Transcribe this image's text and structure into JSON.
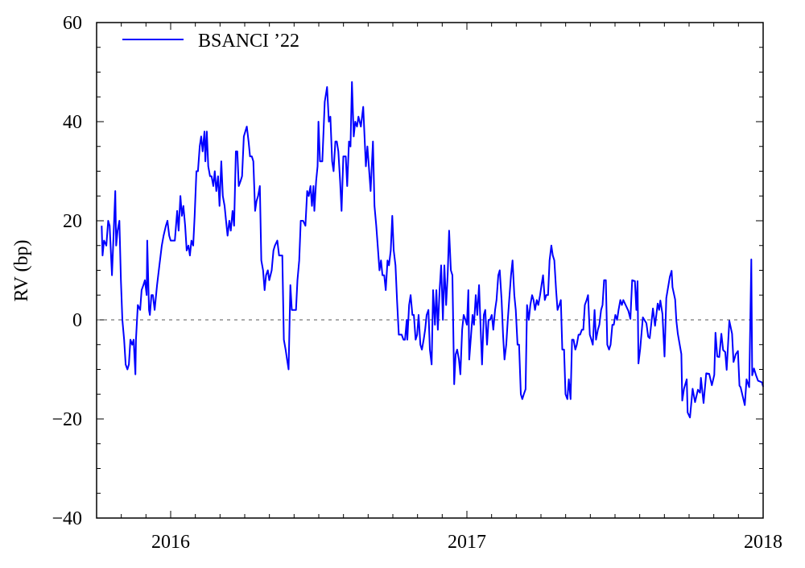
{
  "chart_data": {
    "type": "line",
    "title": "",
    "xlabel": "",
    "ylabel": "RV (bp)",
    "xlim": [
      2015.75,
      2018
    ],
    "ylim": [
      -40,
      60
    ],
    "x_ticks": [
      2016,
      2017,
      2018
    ],
    "x_tick_labels": [
      "2016",
      "2017",
      "2018"
    ],
    "x_minor_step_years": 0.0833333,
    "y_ticks": [
      -40,
      -20,
      0,
      20,
      40,
      60
    ],
    "y_tick_labels": [
      "−40",
      "−20",
      "0",
      "20",
      "40",
      "60"
    ],
    "y_minor_step": 5,
    "grid": false,
    "reference_line": {
      "y": 0,
      "style": "dashed",
      "color": "#555555"
    },
    "legend": {
      "placement": "top-left",
      "entries": [
        "BSANCI ’22"
      ]
    },
    "series": [
      {
        "name": "BSANCI ’22",
        "color": "#0000ff",
        "x": [
          2015.767,
          2015.77,
          2015.775,
          2015.783,
          2015.789,
          2015.794,
          2015.802,
          2015.808,
          2015.813,
          2015.816,
          2015.821,
          2015.827,
          2015.832,
          2015.837,
          2015.843,
          2015.848,
          2015.854,
          2015.859,
          2015.864,
          2015.87,
          2015.875,
          2015.881,
          2015.883,
          2015.889,
          2015.897,
          2015.902,
          2015.908,
          2015.913,
          2015.919,
          2015.921,
          2015.927,
          2015.93,
          2015.935,
          2015.94,
          2015.946,
          2015.954,
          2015.962,
          2015.97,
          2015.976,
          2015.984,
          2015.989,
          2015.995,
          2016.0,
          2016.014,
          2016.022,
          2016.027,
          2016.033,
          2016.038,
          2016.043,
          2016.049,
          2016.054,
          2016.06,
          2016.065,
          2016.07,
          2016.076,
          2016.081,
          2016.087,
          2016.092,
          2016.098,
          2016.103,
          2016.108,
          2016.114,
          2016.117,
          2016.122,
          2016.127,
          2016.133,
          2016.138,
          2016.144,
          2016.149,
          2016.154,
          2016.16,
          2016.165,
          2016.171,
          2016.176,
          2016.182,
          2016.187,
          2016.192,
          2016.198,
          2016.203,
          2016.209,
          2016.214,
          2016.22,
          2016.225,
          2016.23,
          2016.236,
          2016.241,
          2016.247,
          2016.252,
          2016.257,
          2016.263,
          2016.268,
          2016.274,
          2016.279,
          2016.285,
          2016.29,
          2016.295,
          2016.301,
          2016.306,
          2016.312,
          2016.317,
          2016.322,
          2016.328,
          2016.333,
          2016.341,
          2016.347,
          2016.352,
          2016.36,
          2016.366,
          2016.377,
          2016.382,
          2016.388,
          2016.393,
          2016.398,
          2016.404,
          2016.409,
          2016.415,
          2016.423,
          2016.428,
          2016.434,
          2016.439,
          2016.447,
          2016.455,
          2016.461,
          2016.466,
          2016.472,
          2016.477,
          2016.482,
          2016.485,
          2016.491,
          2016.496,
          2016.499,
          2016.504,
          2016.512,
          2016.52,
          2016.528,
          2016.534,
          2016.539,
          2016.545,
          2016.55,
          2016.556,
          2016.561,
          2016.566,
          2016.572,
          2016.577,
          2016.583,
          2016.591,
          2016.596,
          2016.602,
          2016.607,
          2016.612,
          2016.618,
          2016.623,
          2016.629,
          2016.634,
          2016.642,
          2016.65,
          2016.659,
          2016.664,
          2016.669,
          2016.675,
          2016.683,
          2016.688,
          2016.694,
          2016.699,
          2016.705,
          2016.71,
          2016.715,
          2016.721,
          2016.726,
          2016.732,
          2016.737,
          2016.743,
          2016.748,
          2016.753,
          2016.759,
          2016.764,
          2016.77,
          2016.775,
          2016.78,
          2016.786,
          2016.791,
          2016.797,
          2016.799,
          2016.805,
          2016.81,
          2016.816,
          2016.821,
          2016.827,
          2016.832,
          2016.837,
          2016.843,
          2016.848,
          2016.854,
          2016.859,
          2016.864,
          2016.87,
          2016.875,
          2016.881,
          2016.886,
          2016.892,
          2016.897,
          2016.902,
          2016.908,
          2016.913,
          2016.919,
          2016.924,
          2016.93,
          2016.935,
          2016.94,
          2016.946,
          2016.951,
          2016.957,
          2016.962,
          2016.967,
          2016.973,
          2016.978,
          2016.984,
          2016.989,
          2016.995,
          2017.0,
          2017.005,
          2017.008,
          2017.014,
          2017.019,
          2017.024,
          2017.03,
          2017.035,
          2017.041,
          2017.046,
          2017.051,
          2017.057,
          2017.062,
          2017.068,
          2017.073,
          2017.078,
          2017.084,
          2017.089,
          2017.095,
          2017.1,
          2017.106,
          2017.111,
          2017.117,
          2017.122,
          2017.127,
          2017.133,
          2017.138,
          2017.144,
          2017.149,
          2017.154,
          2017.16,
          2017.165,
          2017.171,
          2017.176,
          2017.182,
          2017.187,
          2017.192,
          2017.198,
          2017.203,
          2017.209,
          2017.214,
          2017.22,
          2017.225,
          2017.23,
          2017.236,
          2017.241,
          2017.247,
          2017.252,
          2017.257,
          2017.263,
          2017.268,
          2017.274,
          2017.279,
          2017.285,
          2017.29,
          2017.295,
          2017.301,
          2017.306,
          2017.312,
          2017.317,
          2017.322,
          2017.328,
          2017.333,
          2017.339,
          2017.344,
          2017.35,
          2017.355,
          2017.36,
          2017.366,
          2017.371,
          2017.377,
          2017.382,
          2017.388,
          2017.393,
          2017.398,
          2017.404,
          2017.409,
          2017.415,
          2017.42,
          2017.425,
          2017.431,
          2017.436,
          2017.442,
          2017.447,
          2017.453,
          2017.458,
          2017.463,
          2017.469,
          2017.474,
          2017.48,
          2017.485,
          2017.491,
          2017.496,
          2017.501,
          2017.507,
          2017.512,
          2017.518,
          2017.523,
          2017.528,
          2017.545,
          2017.552,
          2017.558,
          2017.567,
          2017.572,
          2017.576,
          2017.579,
          2017.585,
          2017.594,
          2017.606,
          2017.612,
          2017.617,
          2017.628,
          2017.635,
          2017.644,
          2017.649,
          2017.653,
          2017.66,
          2017.667,
          2017.673,
          2017.685,
          2017.691,
          2017.694,
          2017.703,
          2017.707,
          2017.712,
          2017.724,
          2017.727,
          2017.733,
          2017.742,
          2017.745,
          2017.753,
          2017.762,
          2017.77,
          2017.78,
          2017.787,
          2017.79,
          2017.799,
          2017.808,
          2017.818,
          2017.827,
          2017.835,
          2017.839,
          2017.845,
          2017.852,
          2017.859,
          2017.865,
          2017.872,
          2017.877,
          2017.886,
          2017.895,
          2017.9,
          2017.908,
          2017.915,
          2017.92,
          2017.924,
          2017.938,
          2017.944,
          2017.953,
          2017.96,
          2017.963,
          2017.969,
          2017.976,
          2017.983,
          2017.996,
          2018.0
        ],
        "y": [
          19,
          13,
          16,
          15,
          20,
          19,
          9,
          18,
          26,
          15,
          18,
          20,
          8,
          0,
          -4,
          -9,
          -10,
          -9,
          -4,
          -5,
          -4,
          -11,
          -4,
          3,
          2,
          6,
          7,
          8,
          5,
          16,
          2,
          1,
          5,
          5,
          2,
          7,
          11,
          15,
          17,
          19,
          20,
          17,
          16,
          16,
          22,
          18,
          25,
          21,
          23,
          19,
          14,
          15,
          13,
          16,
          15,
          21,
          30,
          30,
          35,
          37,
          34,
          38,
          32,
          38,
          31,
          29,
          29,
          27,
          30,
          26,
          29,
          23,
          32,
          25,
          23,
          20,
          17,
          20,
          18,
          22,
          19,
          34,
          34,
          27,
          28,
          29,
          37,
          38,
          39,
          36,
          33,
          33,
          32,
          22,
          24,
          25,
          27,
          12,
          10,
          6,
          9,
          10,
          8,
          10,
          14,
          15,
          16,
          13,
          13,
          -4,
          -6,
          -8,
          -10,
          7,
          2,
          2,
          2,
          8,
          12,
          20,
          20,
          19,
          26,
          25,
          27,
          23,
          27,
          22,
          28,
          31,
          40,
          32,
          32,
          44,
          47,
          40,
          41,
          32,
          30,
          36,
          36,
          34,
          28,
          22,
          33,
          33,
          27,
          36,
          35,
          48,
          37,
          40,
          39,
          41,
          39,
          43,
          31,
          35,
          31,
          26,
          36,
          23,
          19,
          15,
          10,
          12,
          9,
          9,
          6,
          12,
          11,
          14,
          21,
          14,
          11,
          4,
          -3,
          -3,
          -3,
          -4,
          -4,
          0,
          -4,
          3,
          5,
          1,
          1,
          -4,
          -3,
          1,
          -5,
          -6,
          -4,
          -2,
          1,
          2,
          -6,
          -9,
          6,
          -1,
          6,
          -2,
          6,
          11,
          0,
          11,
          3,
          9,
          18,
          10,
          9,
          -13,
          -7,
          -6,
          -8,
          -11,
          -2,
          1,
          0,
          -1,
          6,
          -8,
          -3,
          1,
          -1,
          5,
          1,
          7,
          -1,
          -9,
          1,
          2,
          -5,
          0,
          0,
          1,
          -2,
          2,
          4,
          9,
          10,
          4,
          -3,
          -8,
          -5,
          0,
          5,
          9,
          12,
          5,
          2,
          -5,
          -5,
          -15,
          -16,
          -15,
          -14,
          3,
          0,
          3,
          5,
          4,
          2,
          4,
          3,
          5,
          7,
          9,
          4,
          5,
          5,
          12,
          15,
          13,
          12,
          6,
          2,
          3,
          4,
          -6,
          -6,
          -15,
          -16,
          -12,
          -16,
          -4,
          -4,
          -6,
          -5,
          -3,
          -3,
          -2,
          -2,
          3,
          4,
          5,
          -3,
          -4,
          -5,
          2,
          -4,
          -2,
          -1,
          2,
          3,
          8,
          8,
          -5,
          -6,
          -5,
          -1,
          -1,
          1,
          0,
          2,
          4,
          3,
          4,
          1.8,
          0.2,
          8,
          7.8,
          2,
          7.8,
          -8.8,
          -5.8,
          0.5,
          -0.7,
          -3.4,
          -3.7,
          2.3,
          -1.2,
          3.3,
          2,
          3.9,
          1.2,
          -7.4,
          4.4,
          8.7,
          9.9,
          6.6,
          4.1,
          -0.2,
          -2.8,
          -6.9,
          -16.3,
          -13.9,
          -12,
          -18.7,
          -19.7,
          -13.9,
          -16.6,
          -14.1,
          -14.7,
          -11.7,
          -16.8,
          -10.8,
          -10.9,
          -13.2,
          -11.1,
          -2.6,
          -7.4,
          -7.5,
          -2.8,
          -6.1,
          -6.5,
          -10.1,
          -0.2,
          -2.8,
          -8.5,
          -6.9,
          -6.3,
          -13.3,
          -13.6,
          -17.2,
          -12,
          -13.6,
          12.2,
          -11.2,
          -9.8,
          -11.2,
          -12.3,
          -12.6,
          -13.5
        ]
      }
    ]
  }
}
